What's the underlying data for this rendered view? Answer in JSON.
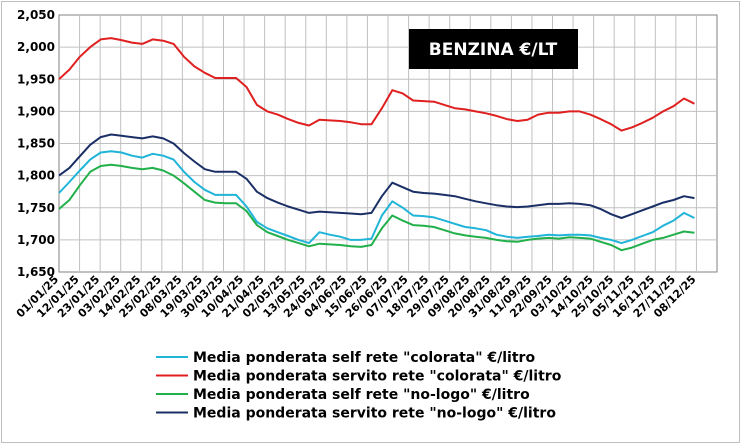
{
  "chart_data": {
    "type": "line",
    "title": "BENZINA €/LT",
    "xlabel": "",
    "ylabel": "",
    "ylim": [
      1.65,
      2.05
    ],
    "y_ticks": [
      "1,650",
      "1,700",
      "1,750",
      "1,800",
      "1,850",
      "1,900",
      "1,950",
      "2,000",
      "2,050"
    ],
    "x_ticks": [
      "01/01/25",
      "12/01/25",
      "23/01/25",
      "03/02/25",
      "14/02/25",
      "25/02/25",
      "08/03/25",
      "19/03/25",
      "30/03/25",
      "10/04/25",
      "21/04/25",
      "02/05/25",
      "13/05/25",
      "24/05/25",
      "04/06/25",
      "15/06/25",
      "26/06/25",
      "07/07/25",
      "18/07/25",
      "29/07/25",
      "09/08/25",
      "20/08/25",
      "31/08/25",
      "11/09/25",
      "22/09/25",
      "03/10/25",
      "14/10/25",
      "25/10/25",
      "05/11/25",
      "16/11/25",
      "27/11/25",
      "08/12/25"
    ],
    "x": [
      "01/01/25",
      "06/01/25",
      "12/01/25",
      "17/01/25",
      "23/01/25",
      "28/01/25",
      "03/02/25",
      "08/02/25",
      "14/02/25",
      "20/02/25",
      "25/02/25",
      "03/03/25",
      "08/03/25",
      "14/03/25",
      "19/03/25",
      "25/03/25",
      "30/03/25",
      "05/04/25",
      "10/04/25",
      "16/04/25",
      "21/04/25",
      "27/04/25",
      "02/05/25",
      "07/05/25",
      "13/05/25",
      "18/05/25",
      "24/05/25",
      "29/05/25",
      "04/06/25",
      "10/06/25",
      "15/06/25",
      "21/06/25",
      "26/06/25",
      "02/07/25",
      "07/07/25",
      "12/07/25",
      "18/07/25",
      "24/07/25",
      "29/07/25",
      "04/08/25",
      "09/08/25",
      "15/08/25",
      "20/08/25",
      "26/08/25",
      "31/08/25",
      "06/09/25",
      "11/09/25",
      "17/09/25",
      "22/09/25",
      "28/09/25",
      "03/10/25",
      "09/10/25",
      "14/10/25",
      "20/10/25",
      "25/10/25",
      "31/10/25",
      "05/11/25",
      "11/11/25",
      "16/11/25",
      "22/11/25",
      "27/11/25",
      "02/12/25"
    ],
    "series": [
      {
        "name": "Media ponderata self rete \"colorata\" €/litro",
        "color": "#1fb4d8",
        "values": [
          1.773,
          1.79,
          1.808,
          1.825,
          1.836,
          1.838,
          1.836,
          1.831,
          1.828,
          1.834,
          1.831,
          1.825,
          1.806,
          1.79,
          1.778,
          1.77,
          1.77,
          1.77,
          1.752,
          1.728,
          1.718,
          1.712,
          1.706,
          1.7,
          1.695,
          1.712,
          1.708,
          1.705,
          1.7,
          1.7,
          1.702,
          1.738,
          1.76,
          1.75,
          1.738,
          1.737,
          1.735,
          1.73,
          1.725,
          1.72,
          1.718,
          1.715,
          1.708,
          1.705,
          1.703,
          1.705,
          1.706,
          1.708,
          1.707,
          1.708,
          1.708,
          1.707,
          1.703,
          1.7,
          1.695,
          1.7,
          1.706,
          1.712,
          1.722,
          1.73,
          1.742,
          1.734
        ]
      },
      {
        "name": "Media ponderata servito rete \"colorata\" €/litro",
        "color": "#e02020",
        "values": [
          1.95,
          1.965,
          1.985,
          2.0,
          2.012,
          2.014,
          2.011,
          2.007,
          2.005,
          2.012,
          2.01,
          2.005,
          1.985,
          1.97,
          1.96,
          1.952,
          1.952,
          1.952,
          1.938,
          1.91,
          1.9,
          1.895,
          1.888,
          1.882,
          1.878,
          1.887,
          1.886,
          1.885,
          1.883,
          1.88,
          1.88,
          1.905,
          1.933,
          1.928,
          1.917,
          1.916,
          1.915,
          1.91,
          1.905,
          1.903,
          1.9,
          1.897,
          1.893,
          1.888,
          1.885,
          1.887,
          1.895,
          1.898,
          1.898,
          1.9,
          1.9,
          1.895,
          1.888,
          1.88,
          1.87,
          1.875,
          1.882,
          1.89,
          1.9,
          1.908,
          1.92,
          1.912
        ]
      },
      {
        "name": "Media ponderata self rete \"no-logo\" €/litro",
        "color": "#22b04b",
        "values": [
          1.748,
          1.762,
          1.785,
          1.806,
          1.815,
          1.817,
          1.815,
          1.812,
          1.81,
          1.812,
          1.808,
          1.8,
          1.788,
          1.775,
          1.762,
          1.758,
          1.757,
          1.757,
          1.745,
          1.723,
          1.712,
          1.706,
          1.7,
          1.695,
          1.69,
          1.694,
          1.693,
          1.692,
          1.69,
          1.689,
          1.692,
          1.718,
          1.738,
          1.73,
          1.723,
          1.722,
          1.72,
          1.715,
          1.71,
          1.707,
          1.705,
          1.703,
          1.7,
          1.698,
          1.697,
          1.7,
          1.702,
          1.703,
          1.702,
          1.704,
          1.703,
          1.702,
          1.697,
          1.692,
          1.684,
          1.688,
          1.694,
          1.7,
          1.703,
          1.708,
          1.713,
          1.711
        ]
      },
      {
        "name": "Media ponderata servito rete \"no-logo\" €/litro",
        "color": "#1a2f66",
        "values": [
          1.8,
          1.812,
          1.83,
          1.848,
          1.86,
          1.864,
          1.862,
          1.86,
          1.858,
          1.861,
          1.858,
          1.85,
          1.835,
          1.822,
          1.81,
          1.806,
          1.806,
          1.806,
          1.795,
          1.775,
          1.765,
          1.758,
          1.752,
          1.747,
          1.742,
          1.744,
          1.743,
          1.742,
          1.741,
          1.74,
          1.742,
          1.768,
          1.789,
          1.782,
          1.775,
          1.773,
          1.772,
          1.77,
          1.768,
          1.764,
          1.76,
          1.757,
          1.754,
          1.752,
          1.751,
          1.752,
          1.754,
          1.756,
          1.756,
          1.757,
          1.756,
          1.754,
          1.748,
          1.74,
          1.734,
          1.74,
          1.746,
          1.752,
          1.758,
          1.762,
          1.768,
          1.765
        ]
      }
    ],
    "grid": true,
    "legend_placement": "bottom"
  }
}
